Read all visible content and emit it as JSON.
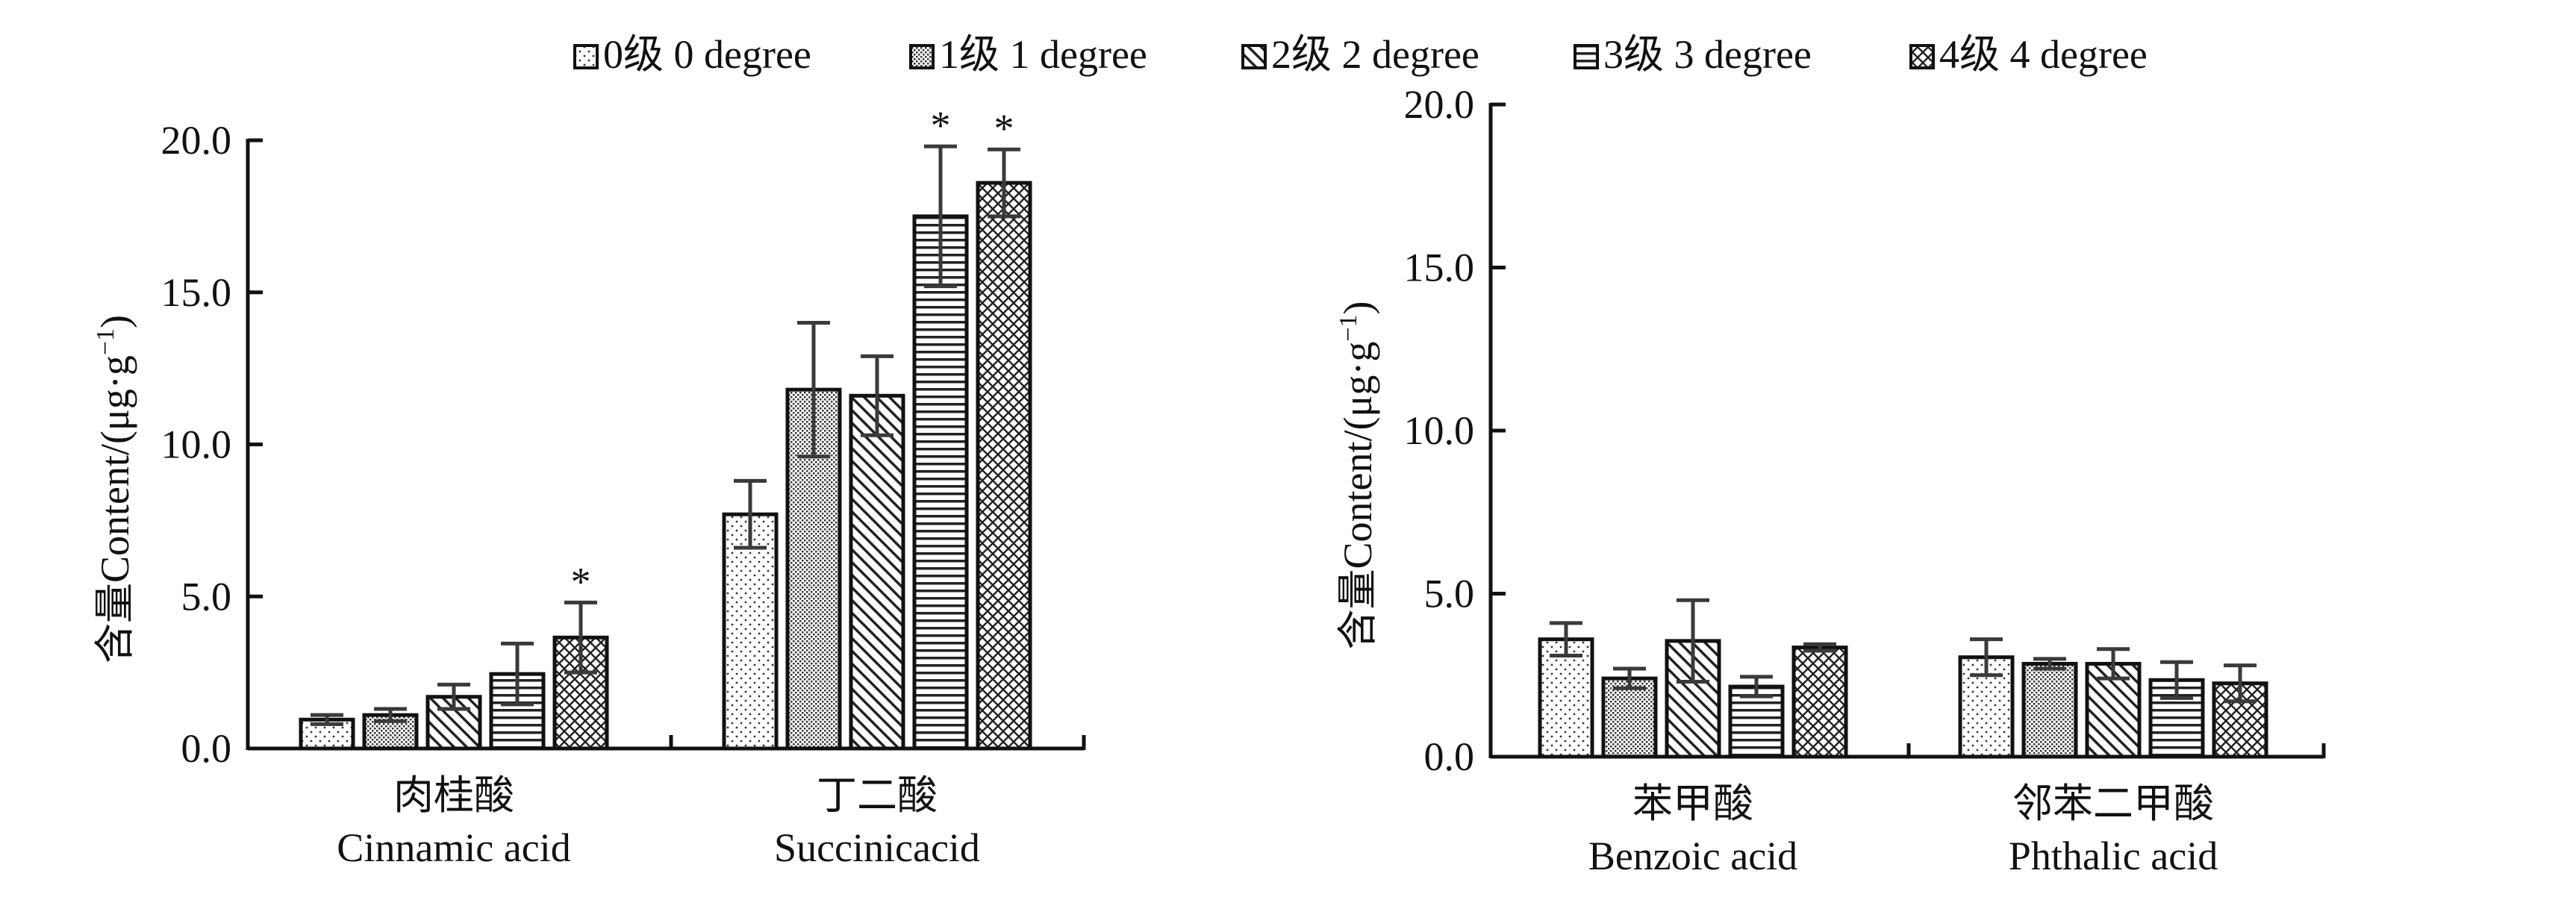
{
  "legend": [
    {
      "label": "0级  0 degree",
      "pattern": "dots"
    },
    {
      "label": "1级  1 degree",
      "pattern": "dense"
    },
    {
      "label": "2级  2 degree",
      "pattern": "diag"
    },
    {
      "label": "3级  3 degree",
      "pattern": "horiz"
    },
    {
      "label": "4级  4 degree",
      "pattern": "cross"
    }
  ],
  "colors": {
    "ink": "#111111",
    "errorbar": "#3a3a3a",
    "background": "#ffffff"
  },
  "chart_data": [
    {
      "type": "bar",
      "ylabel_cn": "含量",
      "ylabel_en": "Content/(μg·g",
      "ylabel_sup": "−1",
      "ylabel_close": ")",
      "ylim": [
        0,
        20
      ],
      "yticks": [
        "0.0",
        "5.0",
        "10.0",
        "15.0",
        "20.0"
      ],
      "grid": false,
      "categories": [
        {
          "cn": "肉桂酸",
          "en": "Cinnamic acid"
        },
        {
          "cn": "丁二酸",
          "en": "Succinicacid"
        }
      ],
      "series": [
        {
          "name": "0级  0 degree",
          "values": [
            0.95,
            7.7
          ],
          "errors": [
            0.15,
            1.1
          ],
          "marks": [
            "",
            ""
          ]
        },
        {
          "name": "1级  1 degree",
          "values": [
            1.1,
            11.8
          ],
          "errors": [
            0.2,
            2.2
          ],
          "marks": [
            "",
            ""
          ]
        },
        {
          "name": "2级  2 degree",
          "values": [
            1.7,
            11.6
          ],
          "errors": [
            0.4,
            1.3
          ],
          "marks": [
            "",
            ""
          ]
        },
        {
          "name": "3级  3 degree",
          "values": [
            2.45,
            17.5
          ],
          "errors": [
            1.0,
            2.3
          ],
          "marks": [
            "",
            "*"
          ]
        },
        {
          "name": "4级  4 degree",
          "values": [
            3.65,
            18.6
          ],
          "errors": [
            1.15,
            1.1
          ],
          "marks": [
            "*",
            "*"
          ]
        }
      ]
    },
    {
      "type": "bar",
      "ylabel_cn": "含量",
      "ylabel_en": "Content/(μg·g",
      "ylabel_sup": "−1",
      "ylabel_close": ")",
      "ylim": [
        0,
        20
      ],
      "yticks": [
        "0.0",
        "5.0",
        "10.0",
        "15.0",
        "20.0"
      ],
      "grid": false,
      "categories": [
        {
          "cn": "苯甲酸",
          "en": "Benzoic acid"
        },
        {
          "cn": "邻苯二甲酸",
          "en": "Phthalic acid"
        }
      ],
      "series": [
        {
          "name": "0级  0 degree",
          "values": [
            3.6,
            3.05
          ],
          "errors": [
            0.5,
            0.55
          ],
          "marks": [
            "",
            ""
          ]
        },
        {
          "name": "1级  1 degree",
          "values": [
            2.4,
            2.85
          ],
          "errors": [
            0.3,
            0.15
          ],
          "marks": [
            "",
            ""
          ]
        },
        {
          "name": "2级  2 degree",
          "values": [
            3.55,
            2.85
          ],
          "errors": [
            1.25,
            0.45
          ],
          "marks": [
            "",
            ""
          ]
        },
        {
          "name": "3级  3 degree",
          "values": [
            2.15,
            2.35
          ],
          "errors": [
            0.3,
            0.55
          ],
          "marks": [
            "",
            ""
          ]
        },
        {
          "name": "4级  4 degree",
          "values": [
            3.35,
            2.25
          ],
          "errors": [
            0.1,
            0.55
          ],
          "marks": [
            "",
            ""
          ]
        }
      ]
    }
  ]
}
